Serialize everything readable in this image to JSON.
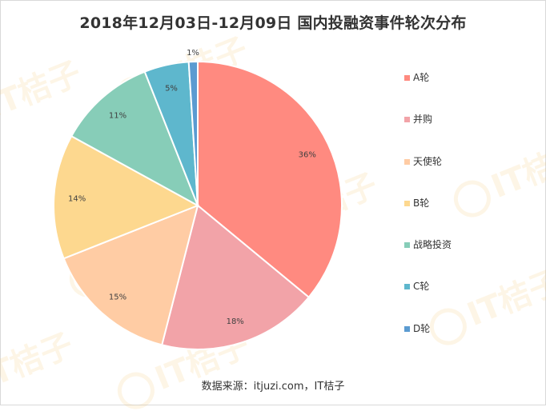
{
  "title": "2018年12月03日-12月09日  国内投融资事件轮次分布",
  "footer": "数据来源：itjuzi.com，IT桔子",
  "watermark": "IT桔子",
  "chart_data": {
    "type": "pie",
    "title": "2018年12月03日-12月09日  国内投融资事件轮次分布",
    "categories": [
      "A轮",
      "并购",
      "天使轮",
      "B轮",
      "战略投资",
      "C轮",
      "D轮"
    ],
    "values": [
      36,
      18,
      15,
      14,
      11,
      5,
      1
    ],
    "labels": [
      "36%",
      "18%",
      "15%",
      "14%",
      "11%",
      "5%",
      "1%"
    ],
    "colors": [
      "#ff8a80",
      "#f2a3a8",
      "#ffcca4",
      "#fdd88f",
      "#87cdb8",
      "#5eb7cd",
      "#5b9bd1"
    ],
    "legend_position": "right"
  }
}
